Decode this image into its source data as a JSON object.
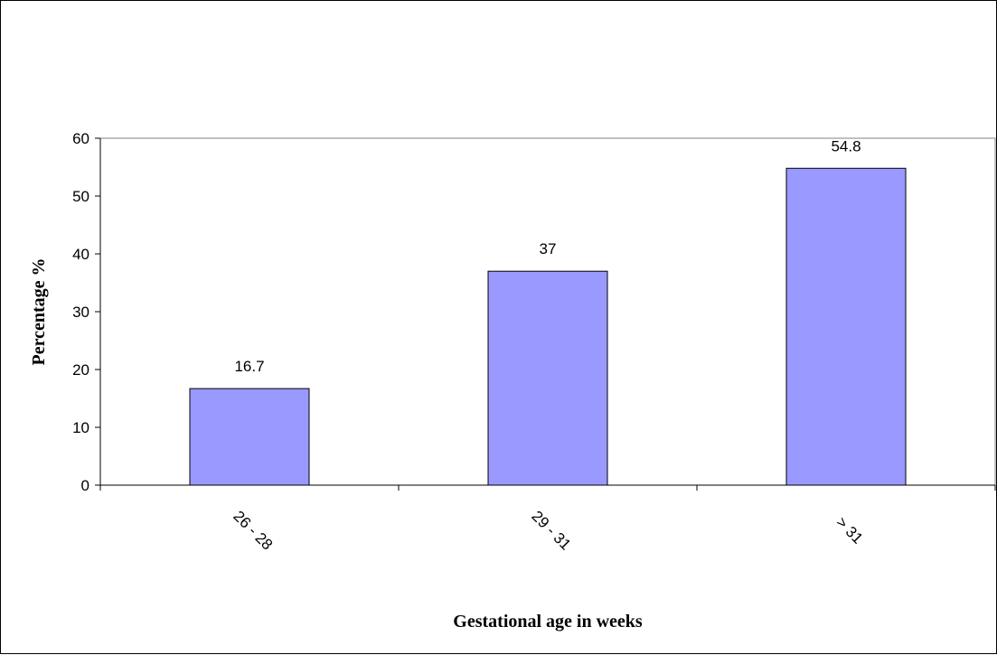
{
  "chart_data": {
    "type": "bar",
    "title": "",
    "xlabel": "Gestational age in weeks",
    "ylabel": "Percentage %",
    "categories": [
      "26 - 28",
      "29 - 31",
      "> 31"
    ],
    "values": [
      16.7,
      37,
      54.8
    ],
    "data_labels": [
      "16.7",
      "37",
      "54.8"
    ],
    "ylim": [
      0,
      60
    ],
    "yticks": [
      "0",
      "10",
      "20",
      "30",
      "40",
      "50",
      "60"
    ],
    "grid": false,
    "legend": "none",
    "bar_color": "#9999ff",
    "bar_edge_color": "#000000"
  }
}
